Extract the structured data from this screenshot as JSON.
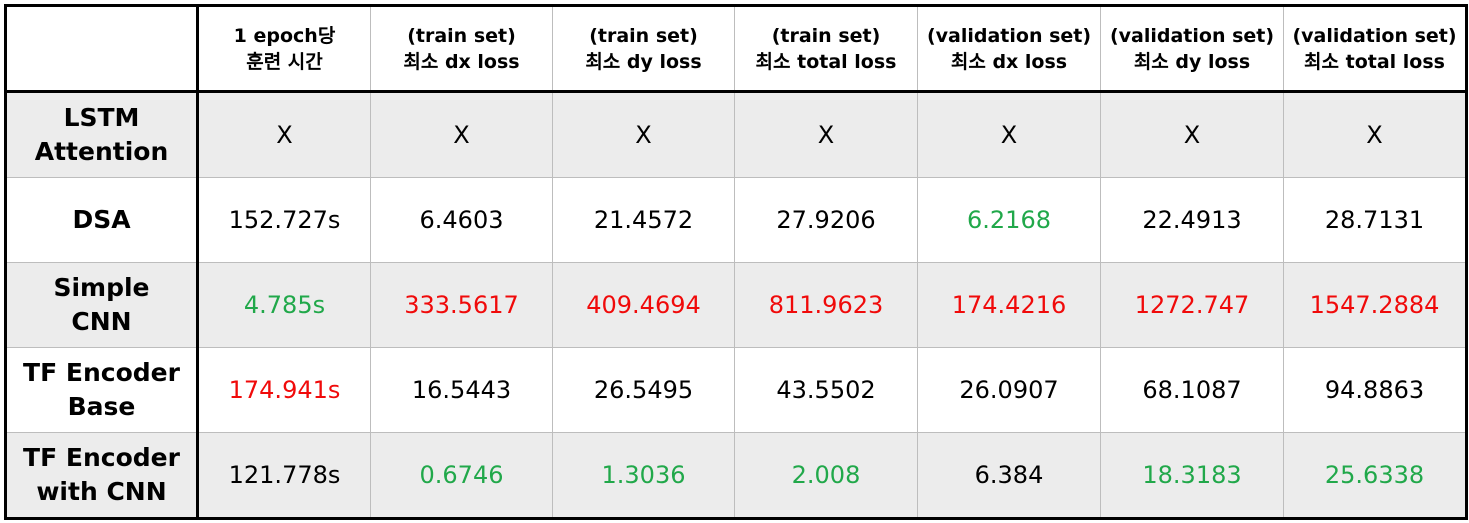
{
  "colors": {
    "best": "#21a84a",
    "worst": "#f00a0a",
    "shade": "#ececec"
  },
  "header": [
    "",
    "1 epoch당\n훈련 시간",
    "(train set)\n최소 dx loss",
    "(train set)\n최소 dy loss",
    "(train set)\n최소 total loss",
    "(validation set)\n최소 dx loss",
    "(validation set)\n최소 dy loss",
    "(validation set)\n최소 total loss"
  ],
  "rows": [
    {
      "model": "LSTM\nAttention",
      "cells": [
        {
          "value": "X",
          "status": "normal"
        },
        {
          "value": "X",
          "status": "normal"
        },
        {
          "value": "X",
          "status": "normal"
        },
        {
          "value": "X",
          "status": "normal"
        },
        {
          "value": "X",
          "status": "normal"
        },
        {
          "value": "X",
          "status": "normal"
        },
        {
          "value": "X",
          "status": "normal"
        }
      ]
    },
    {
      "model": "DSA",
      "cells": [
        {
          "value": "152.727s",
          "status": "normal"
        },
        {
          "value": "6.4603",
          "status": "normal"
        },
        {
          "value": "21.4572",
          "status": "normal"
        },
        {
          "value": "27.9206",
          "status": "normal"
        },
        {
          "value": "6.2168",
          "status": "best"
        },
        {
          "value": "22.4913",
          "status": "normal"
        },
        {
          "value": "28.7131",
          "status": "normal"
        }
      ]
    },
    {
      "model": "Simple\nCNN",
      "cells": [
        {
          "value": "4.785s",
          "status": "best"
        },
        {
          "value": "333.5617",
          "status": "worst"
        },
        {
          "value": "409.4694",
          "status": "worst"
        },
        {
          "value": "811.9623",
          "status": "worst"
        },
        {
          "value": "174.4216",
          "status": "worst"
        },
        {
          "value": "1272.747",
          "status": "worst"
        },
        {
          "value": "1547.2884",
          "status": "worst"
        }
      ]
    },
    {
      "model": "TF Encoder\nBase",
      "cells": [
        {
          "value": "174.941s",
          "status": "worst"
        },
        {
          "value": "16.5443",
          "status": "normal"
        },
        {
          "value": "26.5495",
          "status": "normal"
        },
        {
          "value": "43.5502",
          "status": "normal"
        },
        {
          "value": "26.0907",
          "status": "normal"
        },
        {
          "value": "68.1087",
          "status": "normal"
        },
        {
          "value": "94.8863",
          "status": "normal"
        }
      ]
    },
    {
      "model": "TF Encoder\nwith CNN",
      "cells": [
        {
          "value": "121.778s",
          "status": "normal"
        },
        {
          "value": "0.6746",
          "status": "best"
        },
        {
          "value": "1.3036",
          "status": "best"
        },
        {
          "value": "2.008",
          "status": "best"
        },
        {
          "value": "6.384",
          "status": "normal"
        },
        {
          "value": "18.3183",
          "status": "best"
        },
        {
          "value": "25.6338",
          "status": "best"
        }
      ]
    }
  ]
}
